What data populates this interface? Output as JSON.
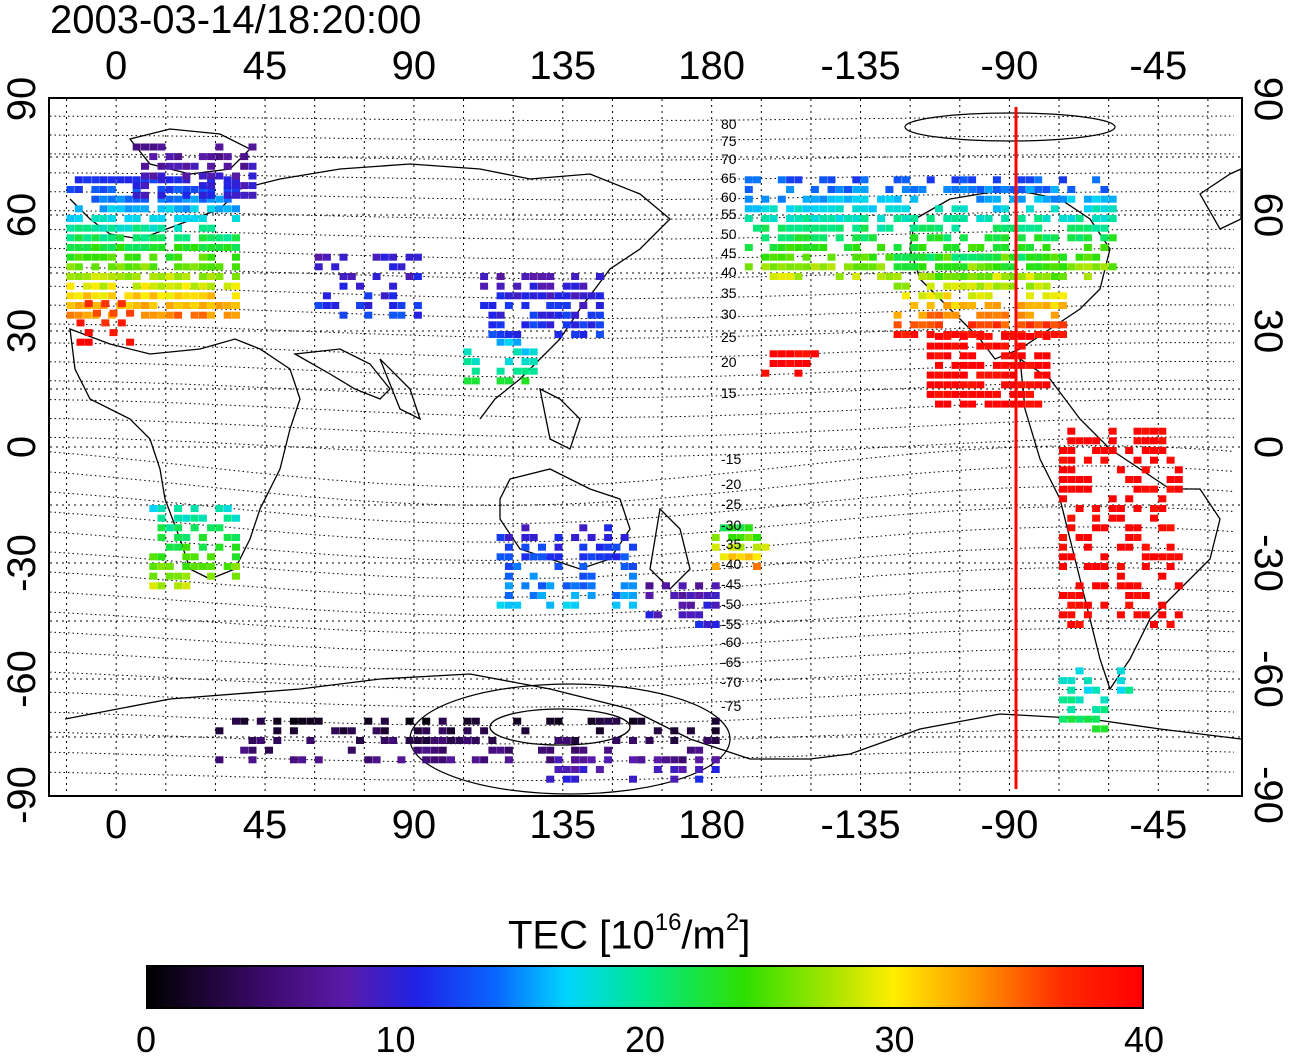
{
  "timestamp": "2003-03-14/18:20:00",
  "lon_ticks": [
    "0",
    "45",
    "90",
    "135",
    "180",
    "-135",
    "-90",
    "-45"
  ],
  "lat_ticks": [
    "90",
    "60",
    "30",
    "0",
    "-30",
    "-60",
    "-90"
  ],
  "contour_labels": [
    "80",
    "75",
    "70",
    "65",
    "60",
    "55",
    "50",
    "45",
    "40",
    "35",
    "30",
    "25",
    "20",
    "15",
    "-15",
    "-20",
    "-25",
    "-30",
    "-35",
    "-40",
    "-45",
    "-50",
    "-55",
    "-60",
    "-65",
    "-70",
    "-75"
  ],
  "colorbar": {
    "title_prefix": "TEC  [10",
    "title_exp1": "16",
    "title_mid": "/m",
    "title_exp2": "2",
    "title_suffix": "]",
    "labels": [
      "0",
      "10",
      "20",
      "30",
      "40"
    ],
    "min": 0,
    "max": 40
  },
  "map": {
    "type": "global TEC map",
    "projection": "equirectangular",
    "lon_range": [
      -20,
      340
    ],
    "lat_range": [
      -90,
      90
    ],
    "meridian_line_lon": -95,
    "meridian_line_color": "#ff0000"
  }
}
